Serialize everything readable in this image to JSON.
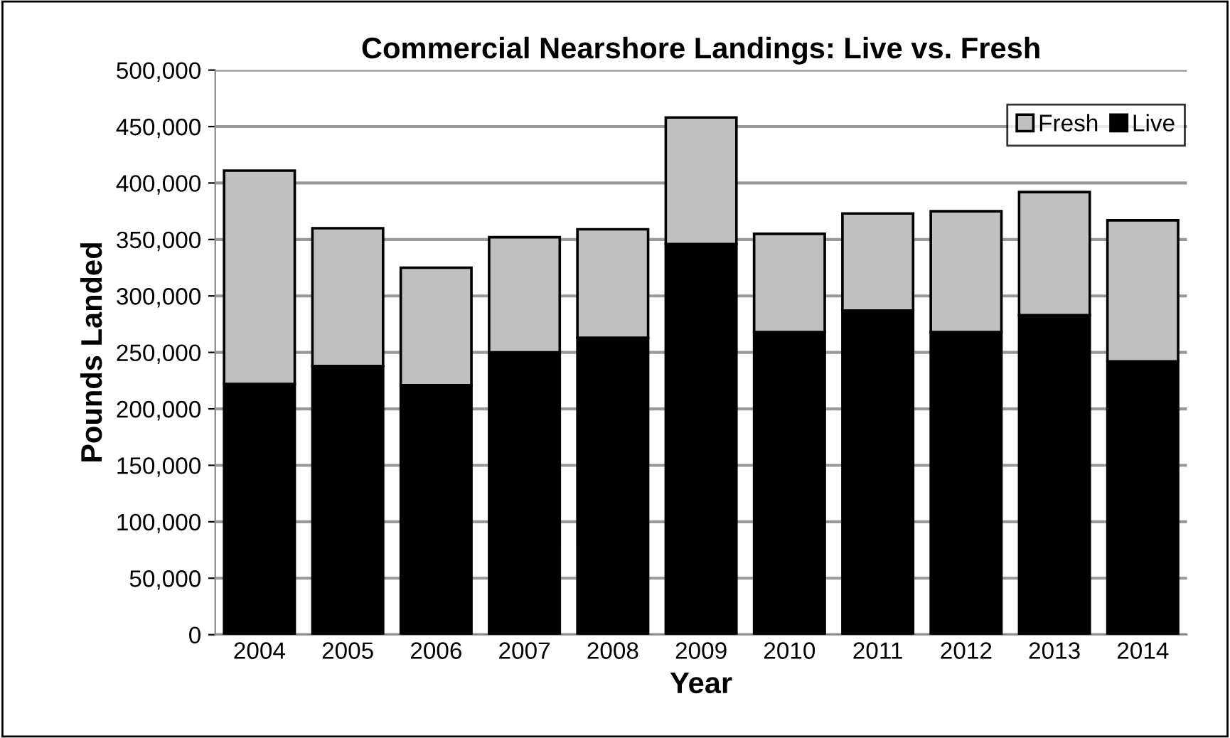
{
  "chart_data": {
    "type": "bar",
    "title": "Commercial Nearshore Landings: Live vs. Fresh",
    "xlabel": "Year",
    "ylabel": "Pounds Landed",
    "categories": [
      "2004",
      "2005",
      "2006",
      "2007",
      "2008",
      "2009",
      "2010",
      "2011",
      "2012",
      "2013",
      "2014"
    ],
    "stacked": true,
    "series": [
      {
        "name": "Live",
        "color": "#000000",
        "values": [
          222000,
          238000,
          221000,
          250000,
          263000,
          346000,
          268000,
          287000,
          268000,
          283000,
          242000
        ]
      },
      {
        "name": "Fresh",
        "color": "#c0c0c0",
        "values": [
          189000,
          122000,
          104000,
          102000,
          96000,
          112000,
          87000,
          86000,
          107000,
          109000,
          125000
        ]
      }
    ],
    "ylim": [
      0,
      500000
    ],
    "yticks": [
      {
        "value": 0,
        "label": "0"
      },
      {
        "value": 50000,
        "label": "50,000"
      },
      {
        "value": 100000,
        "label": "100,000"
      },
      {
        "value": 150000,
        "label": "150,000"
      },
      {
        "value": 200000,
        "label": "200,000"
      },
      {
        "value": 250000,
        "label": "250,000"
      },
      {
        "value": 300000,
        "label": "300,000"
      },
      {
        "value": 350000,
        "label": "350,000"
      },
      {
        "value": 400000,
        "label": "400,000"
      },
      {
        "value": 450000,
        "label": "450,000"
      },
      {
        "value": 500000,
        "label": "500,000"
      }
    ],
    "grid": "y",
    "legend": "top right"
  }
}
